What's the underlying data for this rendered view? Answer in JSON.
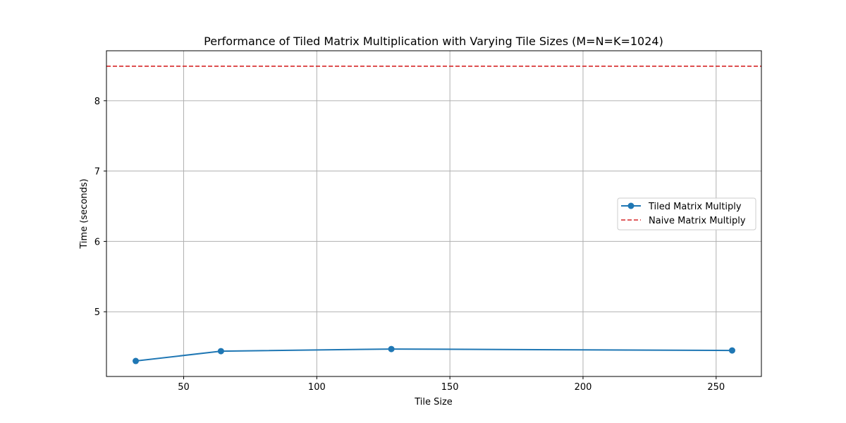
{
  "chart_data": {
    "type": "line",
    "title": "Performance of Tiled Matrix Multiplication with Varying Tile Sizes (M=N=K=1024)",
    "xlabel": "Tile Size",
    "ylabel": "Time (seconds)",
    "xlim": [
      21,
      267
    ],
    "ylim": [
      4.08,
      8.71
    ],
    "xticks": [
      50,
      100,
      150,
      200,
      250
    ],
    "yticks": [
      5,
      6,
      7,
      8
    ],
    "grid": true,
    "legend_position": "right",
    "series": [
      {
        "name": "Tiled Matrix Multiply",
        "style": "line-marker",
        "color": "#1f77b4",
        "x": [
          32,
          64,
          128,
          256
        ],
        "y": [
          4.3,
          4.44,
          4.47,
          4.45
        ]
      },
      {
        "name": "Naive Matrix Multiply",
        "style": "dashed-hline",
        "color": "#d62728",
        "y": 8.49
      }
    ]
  }
}
